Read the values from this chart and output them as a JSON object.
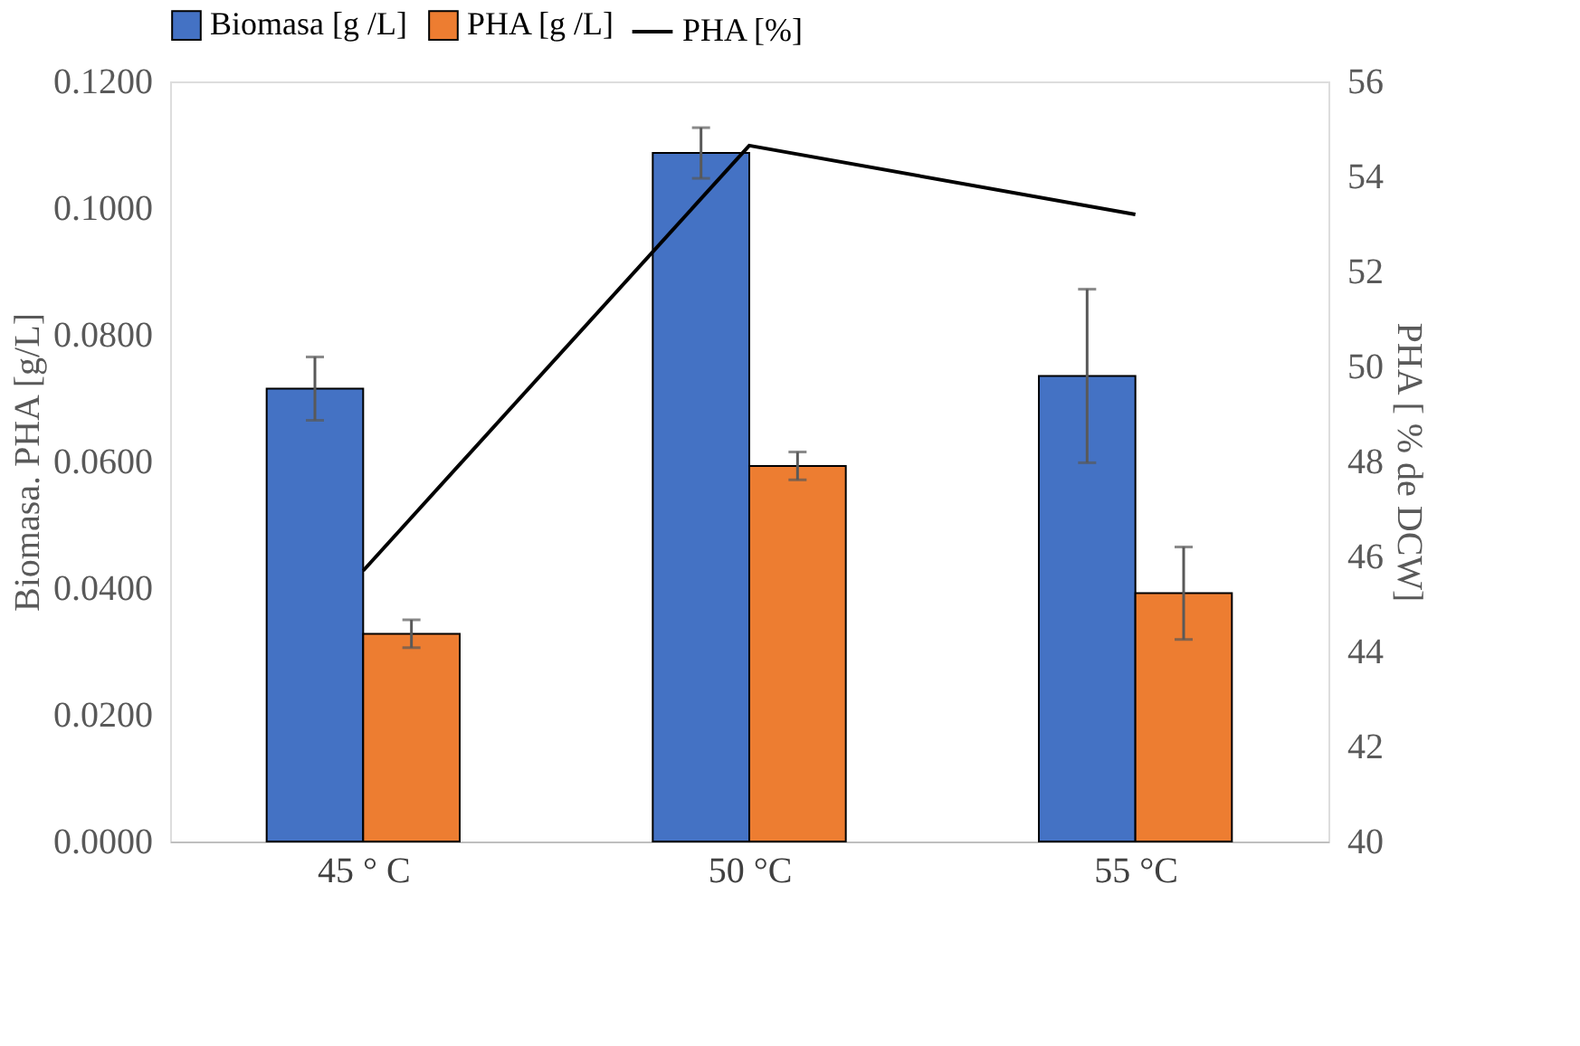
{
  "chart_data": {
    "type": "bar",
    "categories": [
      "45 ° C",
      "50 °C",
      "55 °C"
    ],
    "ylabel": "Biomasa. PHA [g/L]",
    "y2label": "PHA [ % de DCW]",
    "series": [
      {
        "name": "Biomasa [g /L]",
        "color": "#4472c4",
        "values": [
          0.0715,
          0.1087,
          0.0735
        ],
        "errors": [
          0.005,
          0.004,
          0.0137
        ]
      },
      {
        "name": "PHA [g /L]",
        "color": "#ed7d31",
        "values": [
          0.0328,
          0.0593,
          0.0392
        ],
        "errors": [
          0.0022,
          0.0022,
          0.0073
        ]
      },
      {
        "name": "PHA [%]",
        "type": "line",
        "axis": "y2",
        "color": "#000000",
        "values": [
          45.7,
          54.65,
          53.2
        ]
      }
    ],
    "ylim": [
      0,
      0.12
    ],
    "yticks": [
      {
        "value": 0,
        "label": "0.0000"
      },
      {
        "value": 0.02,
        "label": "0.0200"
      },
      {
        "value": 0.04,
        "label": "0.0400"
      },
      {
        "value": 0.06,
        "label": "0.0600"
      },
      {
        "value": 0.08,
        "label": "0.0800"
      },
      {
        "value": 0.1,
        "label": "0.1000"
      },
      {
        "value": 0.12,
        "label": "0.1200"
      }
    ],
    "y2lim": [
      40,
      56
    ],
    "y2ticks": [
      40,
      42,
      44,
      46,
      48,
      50,
      52,
      54,
      56
    ],
    "grid": false,
    "legend": "top",
    "marker": "none"
  }
}
